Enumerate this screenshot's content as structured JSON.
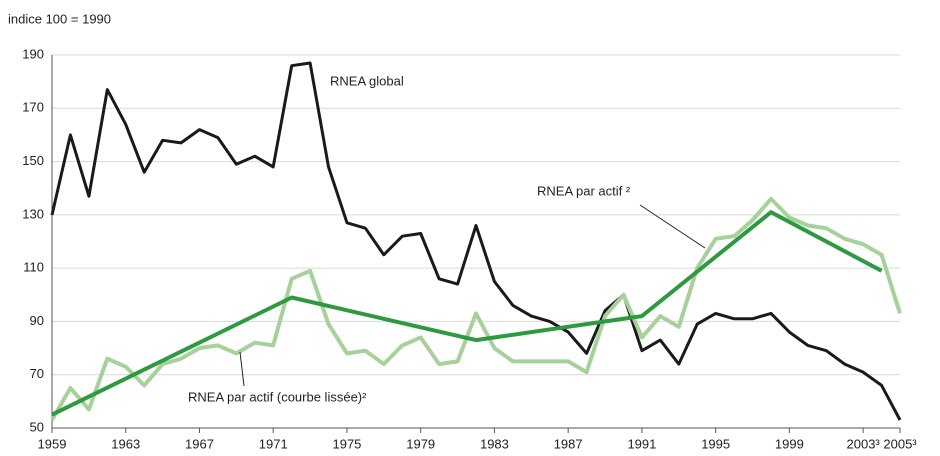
{
  "chart_data": {
    "type": "line",
    "y_axis_label": "indice 100 = 1990",
    "x": [
      1959,
      1960,
      1961,
      1962,
      1963,
      1964,
      1965,
      1966,
      1967,
      1968,
      1969,
      1970,
      1971,
      1972,
      1973,
      1974,
      1975,
      1976,
      1977,
      1978,
      1979,
      1980,
      1981,
      1982,
      1983,
      1984,
      1985,
      1986,
      1987,
      1988,
      1989,
      1990,
      1991,
      1992,
      1993,
      1994,
      1995,
      1996,
      1997,
      1998,
      1999,
      2000,
      2001,
      2002,
      2003,
      2004,
      2005
    ],
    "series": [
      {
        "name": "RNEA global",
        "color": "#1a1a1a",
        "values": [
          130,
          160,
          137,
          177,
          164,
          146,
          158,
          157,
          162,
          159,
          149,
          152,
          148,
          186,
          187,
          148,
          127,
          125,
          115,
          122,
          123,
          106,
          104,
          126,
          105,
          96,
          92,
          90,
          86,
          78,
          94,
          100,
          79,
          83,
          74,
          89,
          93,
          91,
          91,
          93,
          86,
          81,
          79,
          74,
          71,
          66,
          53
        ]
      },
      {
        "name": "RNEA par actif ²",
        "color": "#a6d19b",
        "values": [
          53,
          65,
          57,
          76,
          73,
          66,
          74,
          76,
          80,
          81,
          78,
          82,
          81,
          106,
          109,
          89,
          78,
          79,
          74,
          81,
          84,
          74,
          75,
          93,
          80,
          75,
          75,
          75,
          75,
          71,
          92,
          100,
          84,
          92,
          88,
          110,
          121,
          122,
          128,
          136,
          129,
          126,
          125,
          121,
          119,
          115,
          93
        ]
      },
      {
        "name": "RNEA par actif (courbe lissée)²",
        "color": "#2e9a3f",
        "x": [
          1959,
          1972,
          1982,
          1991,
          1998,
          2004
        ],
        "values": [
          55,
          99,
          83,
          92,
          131,
          109
        ]
      }
    ],
    "xlim": [
      1959,
      2005
    ],
    "ylim": [
      50,
      190
    ],
    "xticks": [
      1959,
      1963,
      1967,
      1971,
      1975,
      1979,
      1983,
      1987,
      1991,
      1995,
      1999,
      {
        "value": 2003,
        "label": "2003³"
      },
      {
        "value": 2005,
        "label": "2005³"
      }
    ],
    "yticks": [
      50,
      70,
      90,
      110,
      130,
      150,
      170,
      190
    ],
    "grid": true
  }
}
